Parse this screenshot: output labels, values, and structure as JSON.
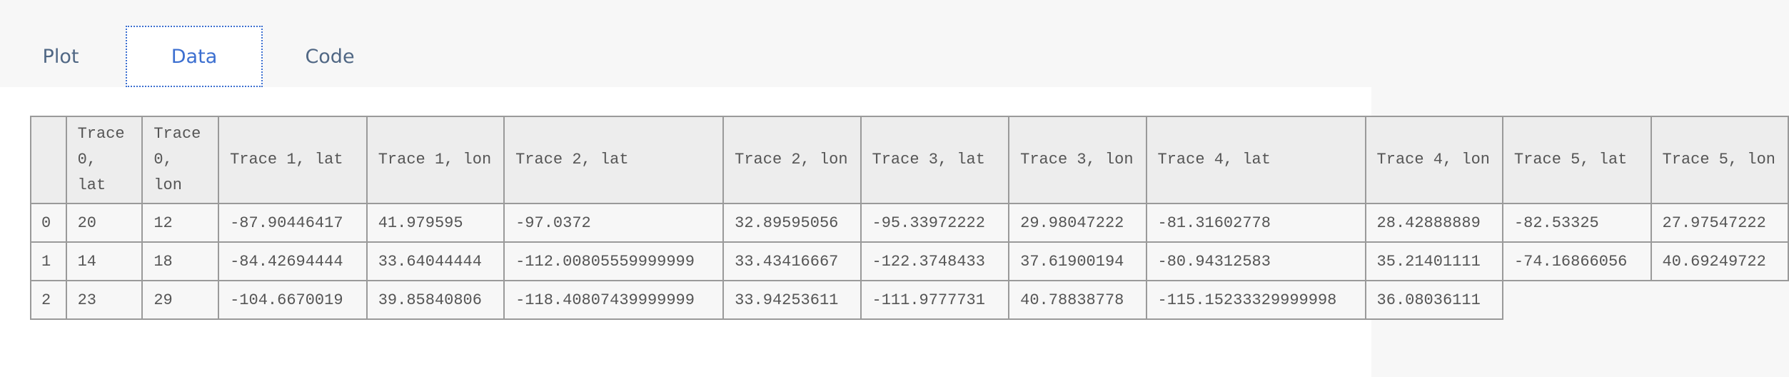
{
  "tabs": [
    {
      "label": "Plot",
      "active": false
    },
    {
      "label": "Data",
      "active": true
    },
    {
      "label": "Code",
      "active": false
    }
  ],
  "table": {
    "headers": [
      "",
      "Trace 0, lat",
      "Trace 0, lon",
      "Trace 1, lat",
      "Trace 1, lon",
      "Trace 2, lat",
      "Trace 2, lon",
      "Trace 3, lat",
      "Trace 3, lon",
      "Trace 4, lat",
      "Trace 4, lon",
      "Trace 5, lat",
      "Trace 5, lon"
    ],
    "rows": [
      [
        "0",
        "20",
        "12",
        "-87.90446417",
        "41.979595",
        "-97.0372",
        "32.89595056",
        "-95.33972222",
        "29.98047222",
        "-81.31602778",
        "28.42888889",
        "-82.53325",
        "27.97547222"
      ],
      [
        "1",
        "14",
        "18",
        "-84.42694444",
        "33.64044444",
        "-112.00805559999999",
        "33.43416667",
        "-122.3748433",
        "37.61900194",
        "-80.94312583",
        "35.21401111",
        "-74.16866056",
        "40.69249722"
      ],
      [
        "2",
        "23",
        "29",
        "-104.6670019",
        "39.85840806",
        "-118.40807439999999",
        "33.94253611",
        "-111.9777731",
        "40.78838778",
        "-115.15233329999998",
        "36.08036111",
        "",
        ""
      ]
    ]
  }
}
